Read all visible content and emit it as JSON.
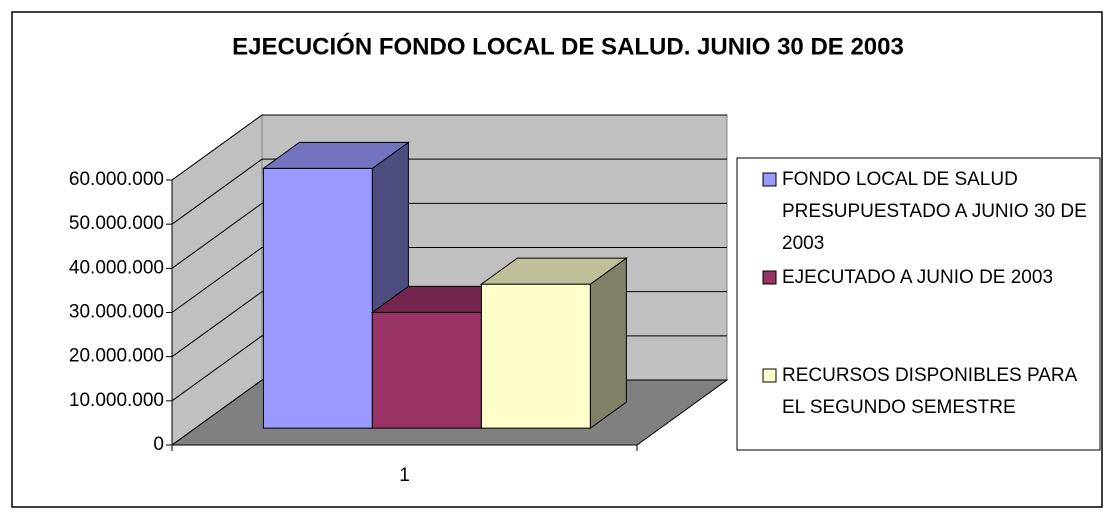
{
  "chart_data": {
    "type": "bar3d",
    "title": "EJECUCIÓN FONDO LOCAL DE SALUD. JUNIO 30 DE 2003",
    "categories": [
      "1"
    ],
    "series": [
      {
        "name": "FONDO LOCAL DE SALUD PRESUPUESTADO A JUNIO 30 DE 2003",
        "color": "#9999ff",
        "values": [
          58800000
        ]
      },
      {
        "name": "EJECUTADO A JUNIO DE 2003",
        "color": "#993366",
        "values": [
          26200000
        ]
      },
      {
        "name": "RECURSOS DISPONIBLES PARA EL SEGUNDO SEMESTRE",
        "color": "#ffffcc",
        "values": [
          32600000
        ]
      }
    ],
    "ylim": [
      0,
      60000000
    ],
    "yticks": [
      0,
      {
        "value": 10000000,
        "label": "10.000.000"
      },
      {
        "value": 20000000,
        "label": "20.000.000"
      },
      {
        "value": 30000000,
        "label": "30.000.000"
      },
      {
        "value": 40000000,
        "label": "40.000.000"
      },
      {
        "value": 50000000,
        "label": "50.000.000"
      },
      {
        "value": 60000000,
        "label": "60.000.000"
      }
    ],
    "grid": true,
    "legend": "right"
  }
}
